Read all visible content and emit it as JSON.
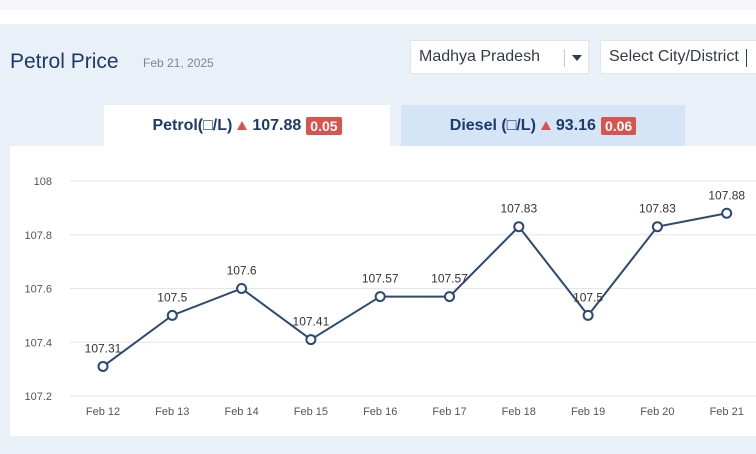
{
  "header": {
    "title": "Petrol Price",
    "date": "Feb 21, 2025"
  },
  "filters": {
    "state": {
      "selected": "Madhya Pradesh"
    },
    "city": {
      "placeholder": "Select City/District"
    }
  },
  "tabs": [
    {
      "name": "Petrol(□/L)",
      "price": "107.88",
      "change": "0.05",
      "active": true
    },
    {
      "name": "Diesel (□/L)",
      "price": "93.16",
      "change": "0.06",
      "active": false
    }
  ],
  "colors": {
    "line": "#2b4a72",
    "up_badge": "#d9534f",
    "title": "#1d3a6b"
  },
  "chart_data": {
    "type": "line",
    "categories": [
      "Feb 12",
      "Feb 13",
      "Feb 14",
      "Feb 15",
      "Feb 16",
      "Feb 17",
      "Feb 18",
      "Feb 19",
      "Feb 20",
      "Feb 21"
    ],
    "values": [
      107.31,
      107.5,
      107.6,
      107.41,
      107.57,
      107.57,
      107.83,
      107.5,
      107.83,
      107.88
    ],
    "value_labels": [
      "107.31",
      "107.5",
      "107.6",
      "107.41",
      "107.57",
      "107.57",
      "107.83",
      "107.5",
      "107.83",
      "107.88"
    ],
    "yticks": [
      107.2,
      107.4,
      107.6,
      107.8,
      108
    ],
    "ytick_labels": [
      "107.2",
      "107.4",
      "107.6",
      "107.8",
      "108"
    ],
    "ylim": [
      107.2,
      108
    ],
    "grid": true
  }
}
